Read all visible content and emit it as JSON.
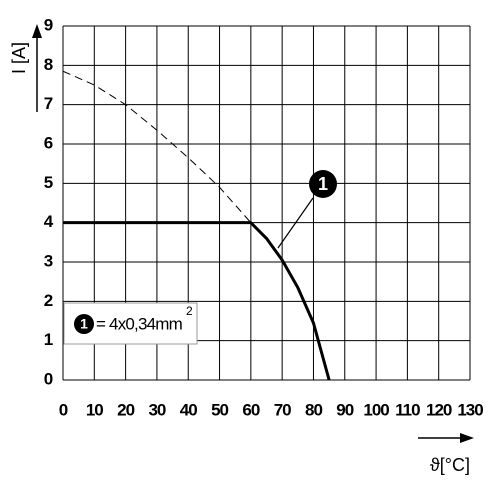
{
  "chart_data": {
    "type": "line",
    "ylabel": "I [A]",
    "xlabel": "ϑ[°C]",
    "xlim": [
      0,
      130
    ],
    "xticks": [
      0,
      10,
      20,
      30,
      40,
      50,
      60,
      70,
      80,
      90,
      100,
      110,
      120,
      130
    ],
    "ylim": [
      0,
      9
    ],
    "yticks": [
      0,
      1,
      2,
      3,
      4,
      5,
      6,
      7,
      8,
      9
    ],
    "grid": true,
    "series": [
      {
        "color": "#000000",
        "dashed": false,
        "x": [
          0,
          60,
          65,
          70,
          75,
          80,
          85
        ],
        "values": [
          4,
          4,
          3.6,
          3.05,
          2.35,
          1.45,
          0
        ]
      },
      {
        "color": "#000000",
        "dashed": true,
        "x": [
          0,
          10,
          20,
          30,
          40,
          50,
          60
        ],
        "values": [
          7.85,
          7.5,
          7.0,
          6.35,
          5.65,
          4.9,
          4
        ]
      }
    ],
    "annotations": {
      "callout": "1",
      "legend_marker": "1",
      "legend_text": "= 4x0,34mm",
      "legend_sup": "2"
    }
  }
}
